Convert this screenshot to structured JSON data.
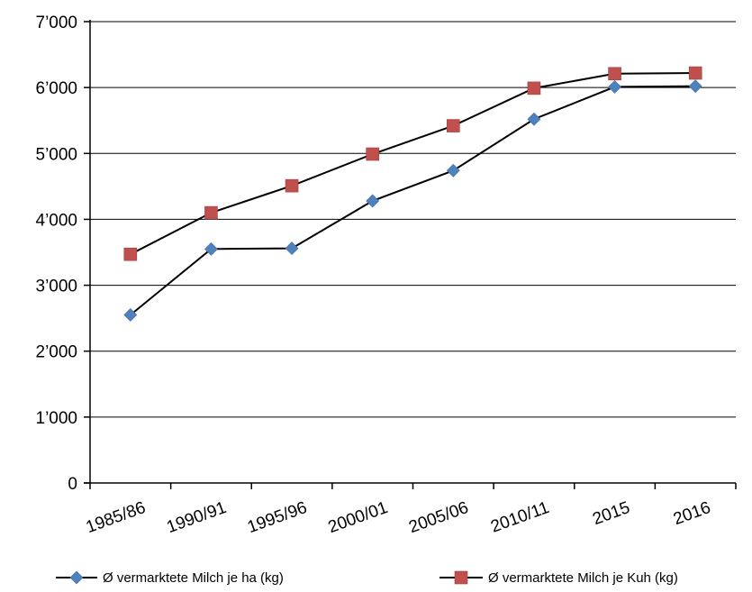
{
  "chart_data": {
    "type": "line",
    "title": "",
    "xlabel": "",
    "ylabel": "",
    "categories": [
      "1985/86",
      "1990/91",
      "1995/96",
      "2000/01",
      "2005/06",
      "2010/11",
      "2015",
      "2016"
    ],
    "ylim": [
      0,
      7000
    ],
    "yticks": [
      0,
      1000,
      2000,
      3000,
      4000,
      5000,
      6000,
      7000
    ],
    "ytick_labels": [
      "0",
      "1’000",
      "2’000",
      "3’000",
      "4’000",
      "5’000",
      "6’000",
      "7’000"
    ],
    "grid": "horizontal",
    "legend_position": "bottom",
    "series": [
      {
        "name": "Ø vermarktete Milch je ha (kg)",
        "color": "#4f81bd",
        "marker": "diamond",
        "values": [
          2550,
          3550,
          3560,
          4280,
          4740,
          5520,
          6010,
          6020
        ]
      },
      {
        "name": "Ø vermarktete Milch je Kuh (kg)",
        "color": "#c0504d",
        "marker": "square",
        "values": [
          3470,
          4100,
          4510,
          4990,
          5420,
          5990,
          6210,
          6220
        ]
      }
    ]
  }
}
